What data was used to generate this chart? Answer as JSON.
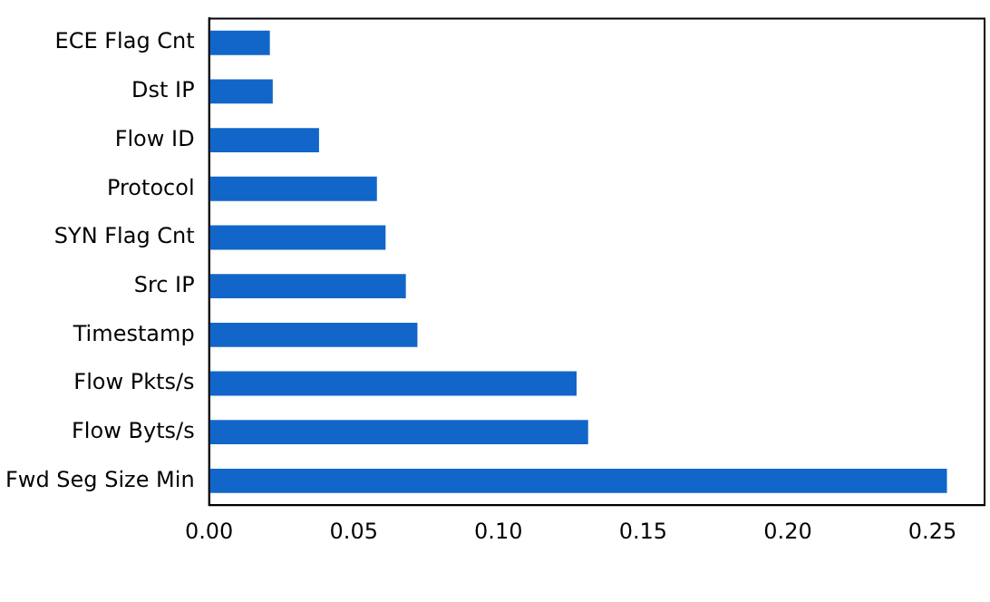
{
  "chart_data": {
    "type": "bar",
    "orientation": "horizontal",
    "categories": [
      "ECE Flag Cnt",
      "Dst IP",
      "Flow ID",
      "Protocol",
      "SYN Flag Cnt",
      "Src IP",
      "Timestamp",
      "Flow Pkts/s",
      "Flow Byts/s",
      "Fwd Seg Size Min"
    ],
    "values": [
      0.021,
      0.022,
      0.038,
      0.058,
      0.061,
      0.068,
      0.072,
      0.127,
      0.131,
      0.255
    ],
    "color": "#1266c9",
    "xlim": [
      0,
      0.268
    ],
    "xticks": [
      {
        "value": 0,
        "label": "0.00"
      },
      {
        "value": 0.05,
        "label": "0.05"
      },
      {
        "value": 0.1,
        "label": "0.10"
      },
      {
        "value": 0.15,
        "label": "0.15"
      },
      {
        "value": 0.2,
        "label": "0.20"
      },
      {
        "value": 0.25,
        "label": "0.25"
      }
    ],
    "grid": false,
    "legend": false
  }
}
